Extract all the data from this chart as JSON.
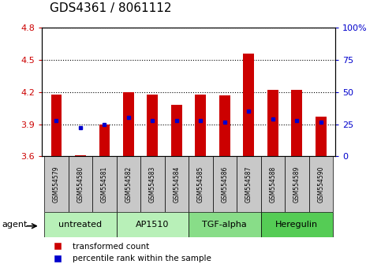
{
  "title": "GDS4361 / 8061112",
  "samples": [
    "GSM554579",
    "GSM554580",
    "GSM554581",
    "GSM554582",
    "GSM554583",
    "GSM554584",
    "GSM554585",
    "GSM554586",
    "GSM554587",
    "GSM554588",
    "GSM554589",
    "GSM554590"
  ],
  "red_values": [
    4.18,
    3.61,
    3.9,
    4.2,
    4.18,
    4.08,
    4.18,
    4.17,
    4.56,
    4.22,
    4.22,
    3.97
  ],
  "blue_values": [
    3.93,
    3.87,
    3.9,
    3.96,
    3.93,
    3.93,
    3.93,
    3.92,
    4.02,
    3.95,
    3.93,
    3.92
  ],
  "ylim_left": [
    3.6,
    4.8
  ],
  "yticks_left": [
    3.6,
    3.9,
    4.2,
    4.5,
    4.8
  ],
  "ylim_right": [
    0,
    100
  ],
  "yticks_right": [
    0,
    25,
    50,
    75,
    100
  ],
  "ytick_labels_right": [
    "0",
    "25",
    "50",
    "75",
    "100%"
  ],
  "groups": [
    {
      "label": "untreated",
      "start": 0,
      "end": 3
    },
    {
      "label": "AP1510",
      "start": 3,
      "end": 6
    },
    {
      "label": "TGF-alpha",
      "start": 6,
      "end": 9
    },
    {
      "label": "Heregulin",
      "start": 9,
      "end": 12
    }
  ],
  "group_colors": [
    "#b8f0b8",
    "#b8f0b8",
    "#88dd88",
    "#55cc55"
  ],
  "bar_width": 0.45,
  "bar_color": "#cc0000",
  "dot_color": "#0000cc",
  "bar_bottom": 3.6,
  "sample_box_color": "#c8c8c8",
  "legend_red": "transformed count",
  "legend_blue": "percentile rank within the sample",
  "agent_label": "agent",
  "title_fontsize": 11,
  "axis_tick_color_left": "#cc0000",
  "axis_tick_color_right": "#0000cc",
  "tick_labelsize": 8,
  "sample_fontsize": 5.5,
  "group_fontsize": 8
}
